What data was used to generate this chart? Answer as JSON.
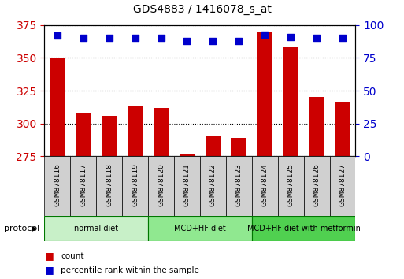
{
  "title": "GDS4883 / 1416078_s_at",
  "samples": [
    "GSM878116",
    "GSM878117",
    "GSM878118",
    "GSM878119",
    "GSM878120",
    "GSM878121",
    "GSM878122",
    "GSM878123",
    "GSM878124",
    "GSM878125",
    "GSM878126",
    "GSM878127"
  ],
  "counts": [
    350,
    308,
    306,
    313,
    312,
    277,
    290,
    289,
    370,
    358,
    320,
    316
  ],
  "percentile": [
    92,
    90,
    90,
    90,
    90,
    88,
    88,
    88,
    93,
    91,
    90,
    90
  ],
  "bar_color": "#cc0000",
  "dot_color": "#0000cc",
  "ylim_left": [
    275,
    375
  ],
  "ylim_right": [
    0,
    100
  ],
  "yticks_left": [
    275,
    300,
    325,
    350,
    375
  ],
  "yticks_right": [
    0,
    25,
    50,
    75,
    100
  ],
  "groups": [
    {
      "label": "normal diet",
      "start": 0,
      "end": 4,
      "color": "#c8f0c8"
    },
    {
      "label": "MCD+HF diet",
      "start": 4,
      "end": 8,
      "color": "#90e890"
    },
    {
      "label": "MCD+HF diet with metformin",
      "start": 8,
      "end": 12,
      "color": "#50d050"
    }
  ],
  "legend_count_label": "count",
  "legend_pct_label": "percentile rank within the sample",
  "protocol_label": "protocol",
  "background_color": "#ffffff",
  "tick_label_color_left": "#cc0000",
  "tick_label_color_right": "#0000cc",
  "cell_bg": "#d0d0d0"
}
